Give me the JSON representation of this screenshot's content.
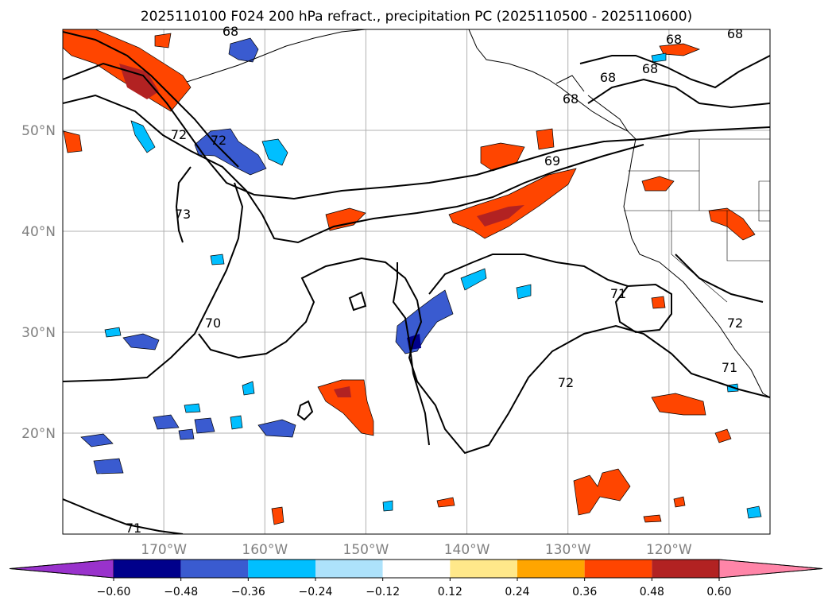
{
  "map": {
    "title": "2025110100 F024 200 hPa refract., precipitation PC (2025110500 - 2025110600)",
    "lat_labels": [
      "50°N",
      "40°N",
      "30°N",
      "20°N"
    ],
    "lat_values": [
      50,
      40,
      30,
      20
    ],
    "lon_labels": [
      "170°W",
      "160°W",
      "150°W",
      "140°W",
      "130°W",
      "120°W"
    ],
    "lon_values": [
      -170,
      -160,
      -150,
      -140,
      -130,
      -120
    ],
    "extent": {
      "lon_min": -180,
      "lon_max": -110,
      "lat_min": 10,
      "lat_max": 60
    },
    "contour_labels": [
      "68",
      "68",
      "68",
      "68",
      "68",
      "68",
      "72",
      "72",
      "73",
      "70",
      "69",
      "71",
      "72",
      "71",
      "72",
      "71"
    ]
  },
  "colorbar": {
    "tick_labels": [
      "−0.60",
      "−0.48",
      "−0.36",
      "−0.24",
      "−0.12",
      "0.12",
      "0.24",
      "0.36",
      "0.48",
      "0.60"
    ],
    "colors": [
      "#9932cc",
      "#00008b",
      "#3a5bd0",
      "#00bfff",
      "#ade2fb",
      "#ffffff",
      "#ffe88a",
      "#ffa500",
      "#ff4500",
      "#b22222",
      "#ff85a8"
    ]
  }
}
